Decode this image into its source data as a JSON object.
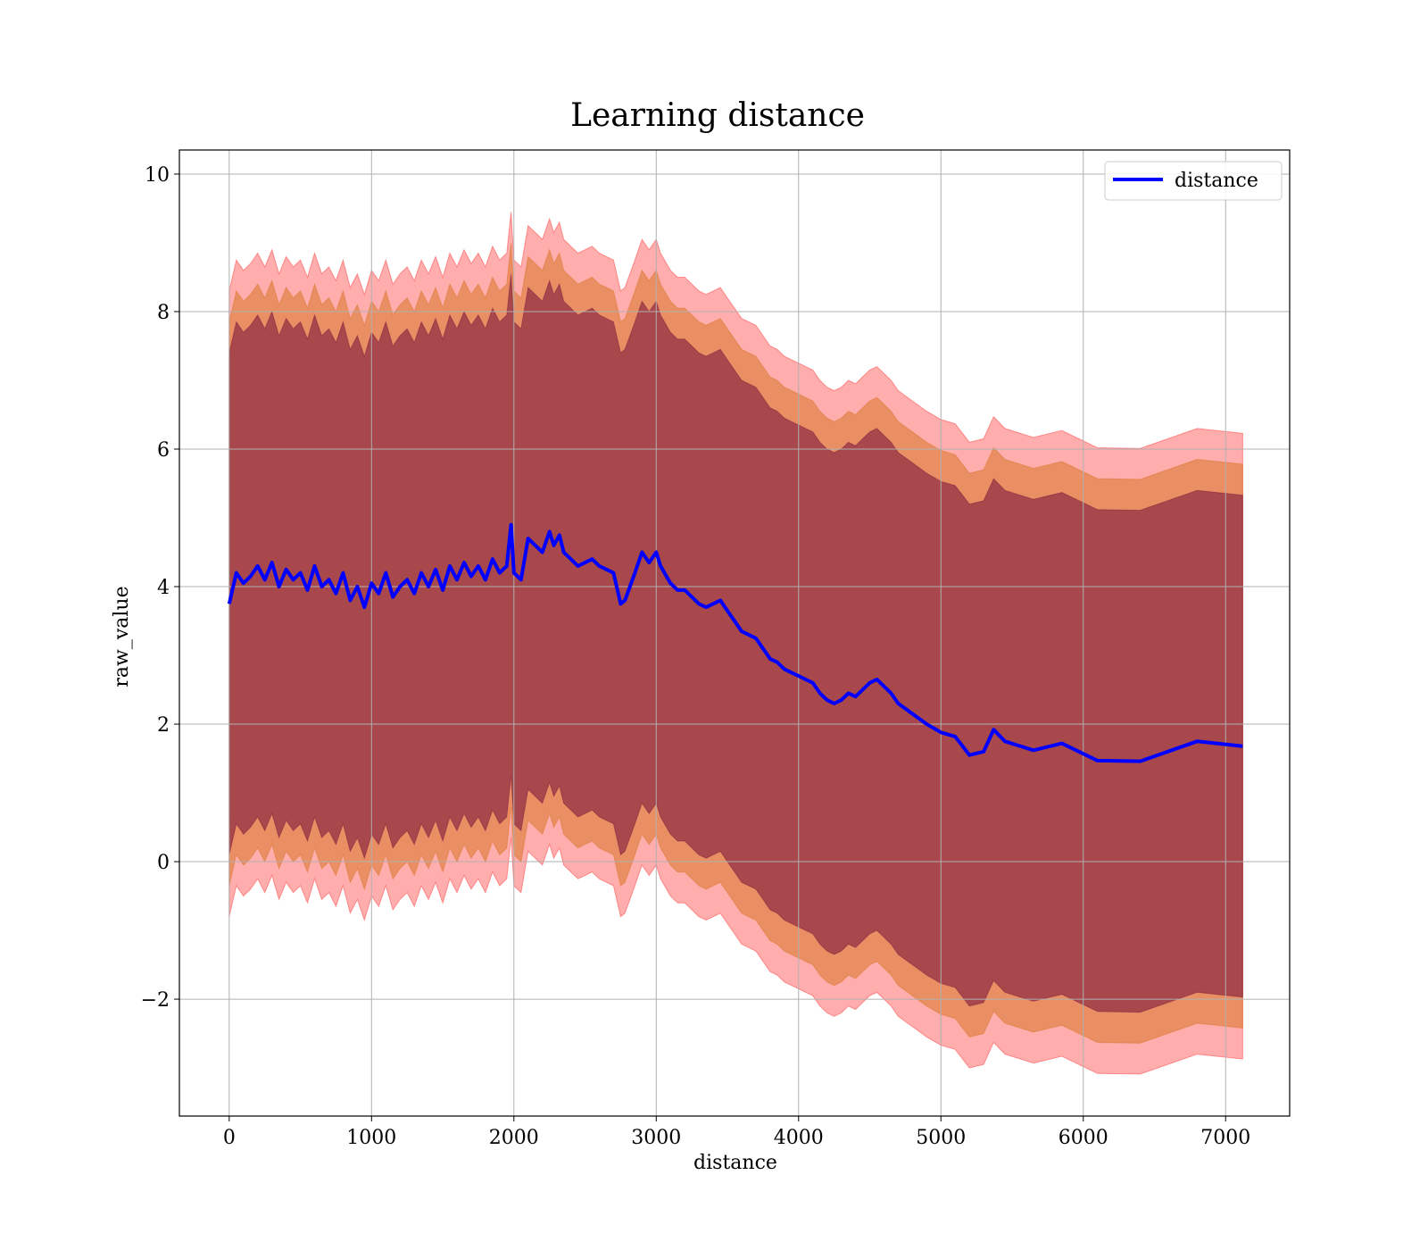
{
  "chart_data": {
    "type": "line",
    "title": "Learning distance",
    "xlabel": "distance",
    "ylabel": "raw_value",
    "xlim": [
      -350,
      7450
    ],
    "ylim": [
      -3.7,
      10.35
    ],
    "xticks": [
      0,
      1000,
      2000,
      3000,
      4000,
      5000,
      6000,
      7000
    ],
    "xtick_labels": [
      "0",
      "1000",
      "2000",
      "3000",
      "4000",
      "5000",
      "6000",
      "7000"
    ],
    "yticks": [
      -2,
      0,
      2,
      4,
      6,
      8,
      10
    ],
    "ytick_labels": [
      "−2",
      "0",
      "2",
      "4",
      "6",
      "8",
      "10"
    ],
    "grid": true,
    "legend": {
      "position": "upper right",
      "entries": [
        "distance"
      ]
    },
    "colors": {
      "line": "#0000ff",
      "band_outer": "#ff0000",
      "band_middle": "#cc6600",
      "band_inner": "#660033",
      "grid": "#b0b0b0"
    },
    "series": [
      {
        "name": "distance",
        "x": [
          0,
          50,
          100,
          150,
          200,
          250,
          300,
          350,
          400,
          450,
          500,
          550,
          600,
          650,
          700,
          750,
          800,
          850,
          900,
          950,
          1000,
          1050,
          1100,
          1150,
          1200,
          1250,
          1300,
          1350,
          1400,
          1450,
          1500,
          1550,
          1600,
          1650,
          1700,
          1750,
          1800,
          1850,
          1900,
          1950,
          1980,
          2000,
          2050,
          2100,
          2150,
          2200,
          2250,
          2280,
          2320,
          2350,
          2400,
          2450,
          2500,
          2550,
          2600,
          2650,
          2700,
          2750,
          2780,
          2850,
          2900,
          2950,
          3000,
          3030,
          3100,
          3150,
          3200,
          3250,
          3300,
          3350,
          3400,
          3450,
          3500,
          3550,
          3600,
          3650,
          3700,
          3750,
          3800,
          3850,
          3900,
          3950,
          4000,
          4050,
          4100,
          4150,
          4200,
          4250,
          4300,
          4350,
          4400,
          4450,
          4500,
          4550,
          4600,
          4650,
          4700,
          4800,
          4900,
          5000,
          5100,
          5200,
          5300,
          5370,
          5450,
          5650,
          5850,
          6100,
          6400,
          6800,
          7120
        ],
        "values": [
          3.75,
          4.2,
          4.05,
          4.15,
          4.3,
          4.1,
          4.35,
          4.0,
          4.25,
          4.1,
          4.2,
          3.95,
          4.3,
          4.0,
          4.1,
          3.9,
          4.2,
          3.8,
          4.0,
          3.7,
          4.05,
          3.9,
          4.2,
          3.85,
          4.0,
          4.1,
          3.9,
          4.2,
          4.0,
          4.25,
          3.95,
          4.3,
          4.1,
          4.35,
          4.15,
          4.3,
          4.1,
          4.4,
          4.2,
          4.3,
          4.9,
          4.2,
          4.1,
          4.7,
          4.6,
          4.5,
          4.8,
          4.6,
          4.75,
          4.5,
          4.4,
          4.3,
          4.35,
          4.4,
          4.3,
          4.25,
          4.2,
          3.75,
          3.8,
          4.2,
          4.5,
          4.35,
          4.5,
          4.3,
          4.05,
          3.95,
          3.95,
          3.85,
          3.75,
          3.7,
          3.75,
          3.8,
          3.65,
          3.5,
          3.35,
          3.3,
          3.25,
          3.1,
          2.95,
          2.9,
          2.8,
          2.75,
          2.7,
          2.65,
          2.6,
          2.45,
          2.35,
          2.3,
          2.35,
          2.45,
          2.4,
          2.5,
          2.6,
          2.65,
          2.55,
          2.45,
          2.3,
          2.15,
          2.0,
          1.88,
          1.82,
          1.55,
          1.6,
          1.92,
          1.75,
          1.62,
          1.72,
          1.47,
          1.46,
          1.75,
          1.68
        ]
      }
    ],
    "bands": [
      {
        "name": "outer",
        "half_width": 4.55
      },
      {
        "name": "middle",
        "half_width": 4.1
      },
      {
        "name": "inner",
        "half_width": 3.65
      }
    ]
  }
}
